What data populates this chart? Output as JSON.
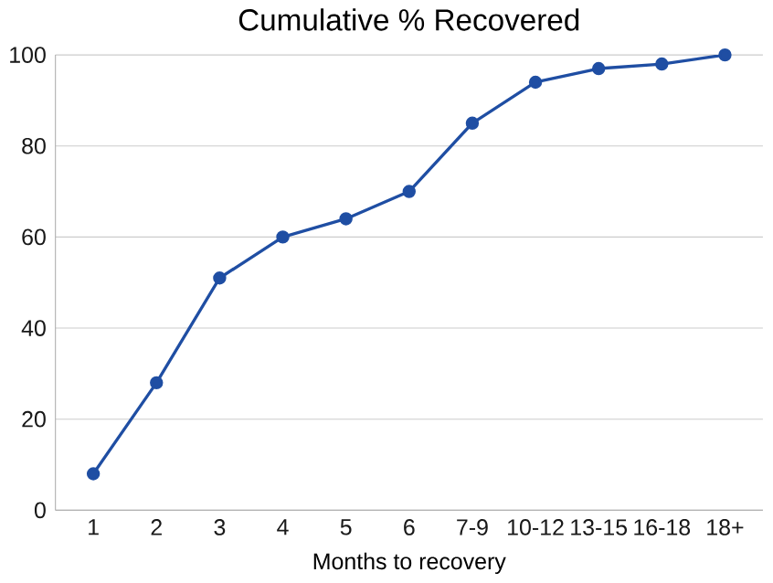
{
  "chart_data": {
    "type": "line",
    "title": "Cumulative % Recovered",
    "xlabel": "Months to recovery",
    "categories": [
      "1",
      "2",
      "3",
      "4",
      "5",
      "6",
      "7-9",
      "10-12",
      "13-15",
      "16-18",
      "18+"
    ],
    "series": [
      {
        "color": "#1f4ea3",
        "values": [
          8,
          28,
          51,
          60,
          64,
          70,
          85,
          94,
          97,
          98,
          100
        ]
      }
    ],
    "ylim": [
      0,
      100
    ],
    "yticks": [
      0,
      20,
      40,
      60,
      80,
      100
    ],
    "grid": "y",
    "marker": "circle",
    "line_style": "solid"
  }
}
